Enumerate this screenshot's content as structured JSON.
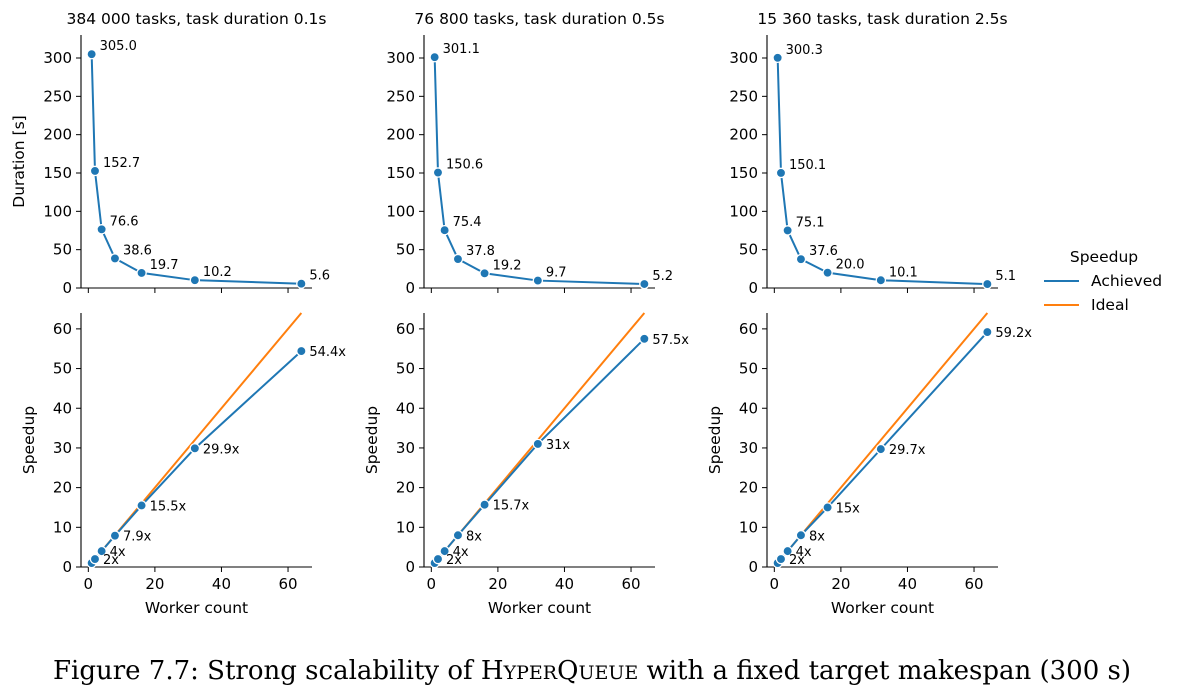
{
  "caption": {
    "prefix": "Figure 7.7: Strong scalability of ",
    "name_parts": [
      {
        "text": "H",
        "small": false
      },
      {
        "text": "YPER",
        "small": true
      },
      {
        "text": "Q",
        "small": false
      },
      {
        "text": "UEUE",
        "small": true
      }
    ],
    "suffix": " with a fixed target makespan (300 s)"
  },
  "legend": {
    "title": "Speedup",
    "items": [
      {
        "label": "Achieved",
        "color": "#1f77b4"
      },
      {
        "label": "Ideal",
        "color": "#ff7f0e"
      }
    ]
  },
  "colors": {
    "achieved": "#1f77b4",
    "ideal": "#ff7f0e"
  },
  "chart_data": [
    {
      "type": "line",
      "panel": "duration",
      "column": 0,
      "title": "384 000 tasks, task duration 0.1s",
      "xlabel": "",
      "ylabel": "Duration [s]",
      "xlim": [
        -2.2,
        67.2
      ],
      "ylim": [
        0,
        330
      ],
      "xticks": [
        0,
        20,
        40,
        60
      ],
      "xtick_labels_shown": false,
      "yticks": [
        0,
        50,
        100,
        150,
        200,
        250,
        300
      ],
      "x": [
        1,
        2,
        4,
        8,
        16,
        32,
        64
      ],
      "series": [
        {
          "name": "Achieved",
          "values": [
            305.0,
            152.7,
            76.6,
            38.6,
            19.7,
            10.2,
            5.6
          ]
        }
      ],
      "labels": [
        "305.0",
        "152.7",
        "76.6",
        "38.6",
        "19.7",
        "10.2",
        "5.6"
      ]
    },
    {
      "type": "line",
      "panel": "duration",
      "column": 1,
      "title": "76 800 tasks, task duration 0.5s",
      "xlabel": "",
      "ylabel": "",
      "xlim": [
        -2.2,
        67.2
      ],
      "ylim": [
        0,
        330
      ],
      "xticks": [
        0,
        20,
        40,
        60
      ],
      "xtick_labels_shown": false,
      "yticks": [
        0,
        50,
        100,
        150,
        200,
        250,
        300
      ],
      "x": [
        1,
        2,
        4,
        8,
        16,
        32,
        64
      ],
      "series": [
        {
          "name": "Achieved",
          "values": [
            301.1,
            150.6,
            75.4,
            37.8,
            19.2,
            9.7,
            5.2
          ]
        }
      ],
      "labels": [
        "301.1",
        "150.6",
        "75.4",
        "37.8",
        "19.2",
        "9.7",
        "5.2"
      ]
    },
    {
      "type": "line",
      "panel": "duration",
      "column": 2,
      "title": "15 360 tasks, task duration 2.5s",
      "xlabel": "",
      "ylabel": "",
      "xlim": [
        -2.2,
        67.2
      ],
      "ylim": [
        0,
        330
      ],
      "xticks": [
        0,
        20,
        40,
        60
      ],
      "xtick_labels_shown": false,
      "yticks": [
        0,
        50,
        100,
        150,
        200,
        250,
        300
      ],
      "x": [
        1,
        2,
        4,
        8,
        16,
        32,
        64
      ],
      "series": [
        {
          "name": "Achieved",
          "values": [
            300.3,
            150.1,
            75.1,
            37.6,
            20.0,
            10.1,
            5.1
          ]
        }
      ],
      "labels": [
        "300.3",
        "150.1",
        "75.1",
        "37.6",
        "20.0",
        "10.1",
        "5.1"
      ]
    },
    {
      "type": "line",
      "panel": "speedup",
      "column": 0,
      "title": "",
      "xlabel": "Worker count",
      "ylabel": "Speedup",
      "xlim": [
        -2.2,
        67.2
      ],
      "ylim": [
        0,
        64
      ],
      "xticks": [
        0,
        20,
        40,
        60
      ],
      "xtick_labels_shown": true,
      "yticks": [
        0,
        10,
        20,
        30,
        40,
        50,
        60
      ],
      "x": [
        1,
        2,
        4,
        8,
        16,
        32,
        64
      ],
      "series": [
        {
          "name": "Achieved",
          "values": [
            1,
            2,
            4,
            7.9,
            15.5,
            29.9,
            54.4
          ]
        },
        {
          "name": "Ideal",
          "values": [
            1,
            2,
            4,
            8,
            16,
            32,
            64
          ]
        }
      ],
      "labels": [
        "",
        "2x",
        "4x",
        "7.9x",
        "15.5x",
        "29.9x",
        "54.4x"
      ]
    },
    {
      "type": "line",
      "panel": "speedup",
      "column": 1,
      "title": "",
      "xlabel": "Worker count",
      "ylabel": "Speedup",
      "xlim": [
        -2.2,
        67.2
      ],
      "ylim": [
        0,
        64
      ],
      "xticks": [
        0,
        20,
        40,
        60
      ],
      "xtick_labels_shown": true,
      "yticks": [
        0,
        10,
        20,
        30,
        40,
        50,
        60
      ],
      "x": [
        1,
        2,
        4,
        8,
        16,
        32,
        64
      ],
      "series": [
        {
          "name": "Achieved",
          "values": [
            1,
            2,
            4,
            8,
            15.7,
            31,
            57.5
          ]
        },
        {
          "name": "Ideal",
          "values": [
            1,
            2,
            4,
            8,
            16,
            32,
            64
          ]
        }
      ],
      "labels": [
        "",
        "2x",
        "4x",
        "8x",
        "15.7x",
        "31x",
        "57.5x"
      ]
    },
    {
      "type": "line",
      "panel": "speedup",
      "column": 2,
      "title": "",
      "xlabel": "Worker count",
      "ylabel": "Speedup",
      "xlim": [
        -2.2,
        67.2
      ],
      "ylim": [
        0,
        64
      ],
      "xticks": [
        0,
        20,
        40,
        60
      ],
      "xtick_labels_shown": true,
      "yticks": [
        0,
        10,
        20,
        30,
        40,
        50,
        60
      ],
      "x": [
        1,
        2,
        4,
        8,
        16,
        32,
        64
      ],
      "series": [
        {
          "name": "Achieved",
          "values": [
            1,
            2,
            4,
            8,
            15,
            29.7,
            59.2
          ]
        },
        {
          "name": "Ideal",
          "values": [
            1,
            2,
            4,
            8,
            16,
            32,
            64
          ]
        }
      ],
      "labels": [
        "",
        "2x",
        "4x",
        "8x",
        "15x",
        "29.7x",
        "59.2x"
      ]
    }
  ]
}
